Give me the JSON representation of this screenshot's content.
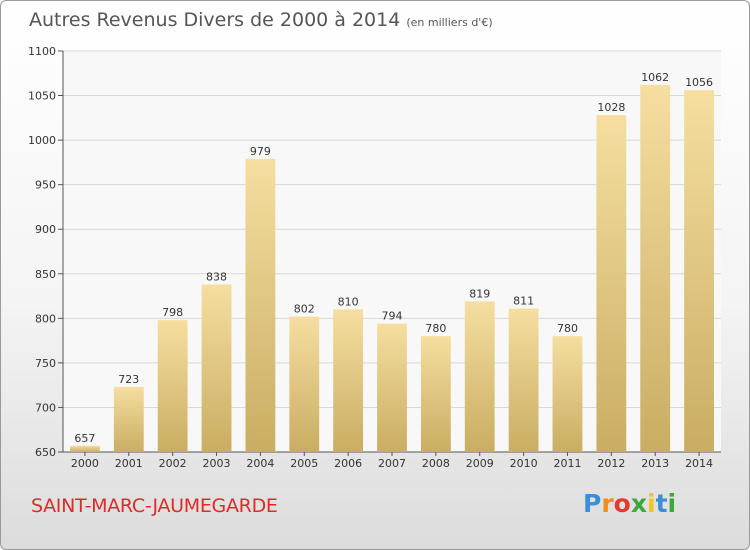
{
  "header": {
    "title": "Autres Revenus Divers de 2000 à 2014",
    "unit": "(en milliers d'€)"
  },
  "footer": {
    "commune": "SAINT-MARC-JAUMEGARDE",
    "logo_letters": [
      "P",
      "r",
      "o",
      "x",
      "i",
      "t",
      "i"
    ],
    "logo_colors": [
      "#3a8fd8",
      "#f28c1e",
      "#e23a2e",
      "#3aa83a",
      "#f2c61e",
      "#3a8fd8",
      "#3aa83a"
    ]
  },
  "chart_data": {
    "type": "bar",
    "title": "Autres Revenus Divers de 2000 à 2014",
    "categories": [
      "2000",
      "2001",
      "2002",
      "2003",
      "2004",
      "2005",
      "2006",
      "2007",
      "2008",
      "2009",
      "2010",
      "2011",
      "2012",
      "2013",
      "2014"
    ],
    "values": [
      657,
      723,
      798,
      838,
      979,
      802,
      810,
      794,
      780,
      819,
      811,
      780,
      1028,
      1062,
      1056
    ],
    "data_labels": [
      "657",
      "723",
      "798",
      "838",
      "979",
      "802",
      "810",
      "794",
      "780",
      "819",
      "811",
      "780",
      "1028",
      "1062",
      "1056"
    ],
    "ylim": [
      650,
      1100
    ],
    "yticks": [
      650,
      700,
      750,
      800,
      850,
      900,
      950,
      1000,
      1050,
      1100
    ],
    "ytick_labels": [
      "650",
      "700",
      "750",
      "800",
      "850",
      "900",
      "950",
      "1000",
      "1050",
      "1100"
    ],
    "xlabel": "",
    "ylabel": "",
    "grid": true,
    "bar_color_top": "#f5dea0",
    "bar_color_bottom": "#c9ad62"
  }
}
